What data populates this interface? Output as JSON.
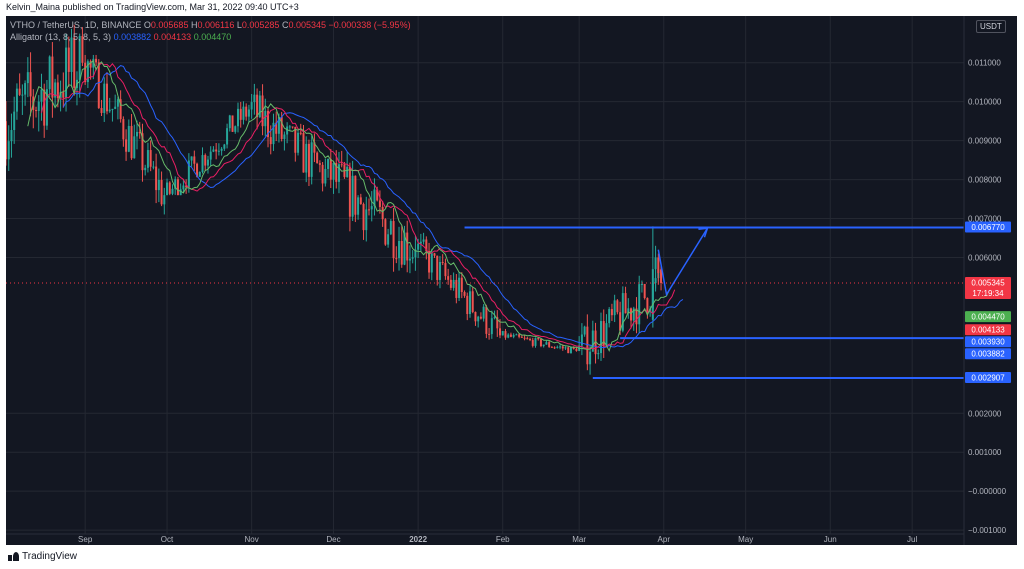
{
  "header": {
    "published": "Kelvin_Maina published on TradingView.com, Mar 31, 2022 09:40 UTC+3"
  },
  "legend": {
    "symbol": "VTHO / TetherUS, 1D, BINANCE",
    "o_label": "O",
    "o": "0.005685",
    "h_label": "H",
    "h": "0.006116",
    "l_label": "L",
    "l": "0.005285",
    "c_label": "C",
    "c": "0.005345",
    "chg": "−0.000338 (−5.95%)",
    "indicator": "Alligator (13, 8, 5, 8, 5, 3)",
    "jaw": "0.003882",
    "teeth": "0.004133",
    "lips": "0.004470"
  },
  "footer": {
    "brand": "TradingView"
  },
  "colors": {
    "background": "#131722",
    "grid": "#242832",
    "up": "#26a69a",
    "down": "#ef5350",
    "jaw": "#2962ff",
    "teeth": "#e91e63",
    "lips": "#66bb6a",
    "drawing": "#2962ff"
  },
  "chart_data": {
    "type": "candlestick",
    "symbol": "VTHO / TetherUS",
    "interval": "1D",
    "exchange": "BINANCE",
    "unit": "USDT",
    "ylim": [
      -0.0011,
      0.0122
    ],
    "y_ticks": [
      "0.011000",
      "0.010000",
      "0.009000",
      "0.008000",
      "0.007000",
      "0.006000",
      "0.002000",
      "0.001000",
      "−0.000000",
      "−0.001000"
    ],
    "x_ticks": [
      "Sep",
      "Oct",
      "Nov",
      "Dec",
      "2022",
      "Feb",
      "Mar",
      "Apr",
      "May",
      "Jun",
      "Jul"
    ],
    "price_labels": [
      {
        "text": "0.006770",
        "value": 0.00677,
        "color": "#2962ff"
      },
      {
        "text": "0.005345",
        "value": 0.005345,
        "color": "#f23645",
        "sub": "17:19:34"
      },
      {
        "text": "0.004470",
        "value": 0.00447,
        "color": "#4caf50"
      },
      {
        "text": "0.004133",
        "value": 0.004133,
        "color": "#f23645"
      },
      {
        "text": "0.003930",
        "value": 0.00393,
        "color": "#2962ff"
      },
      {
        "text": "0.003882",
        "value": 0.003882,
        "color": "#2962ff"
      },
      {
        "text": "0.002907",
        "value": 0.002907,
        "color": "#2962ff"
      }
    ],
    "horizontal_lines": [
      {
        "value": 0.00677,
        "from": "2022-01-18",
        "to": "right"
      },
      {
        "value": 0.00393,
        "from": "2022-03-16",
        "to": "right"
      },
      {
        "value": 0.002907,
        "from": "2022-03-06",
        "to": "right"
      }
    ],
    "projection_arrow": [
      {
        "date": "2022-04-02",
        "value": 0.00505
      },
      {
        "date": "2022-04-17",
        "value": 0.00675
      }
    ],
    "last_price": 0.005345,
    "ohlc_monthly_approx": [
      {
        "period": "Aug 2021",
        "open": 0.0095,
        "high": 0.0135,
        "low": 0.0065,
        "close": 0.011
      },
      {
        "period": "Sep 2021",
        "open": 0.011,
        "high": 0.0112,
        "low": 0.007,
        "close": 0.0076
      },
      {
        "period": "Oct 2021",
        "open": 0.0076,
        "high": 0.0102,
        "low": 0.0076,
        "close": 0.0098
      },
      {
        "period": "Nov 2021",
        "open": 0.0098,
        "high": 0.0115,
        "low": 0.0074,
        "close": 0.008
      },
      {
        "period": "Dec 2021",
        "open": 0.008,
        "high": 0.01,
        "low": 0.005,
        "close": 0.0062
      },
      {
        "period": "Jan 2022",
        "open": 0.0062,
        "high": 0.0069,
        "low": 0.0038,
        "close": 0.004
      },
      {
        "period": "Feb 2022",
        "open": 0.004,
        "high": 0.0043,
        "low": 0.0035,
        "close": 0.0036
      },
      {
        "period": "Mar 2022",
        "open": 0.0036,
        "high": 0.0068,
        "low": 0.0028,
        "close": 0.005345
      }
    ]
  }
}
